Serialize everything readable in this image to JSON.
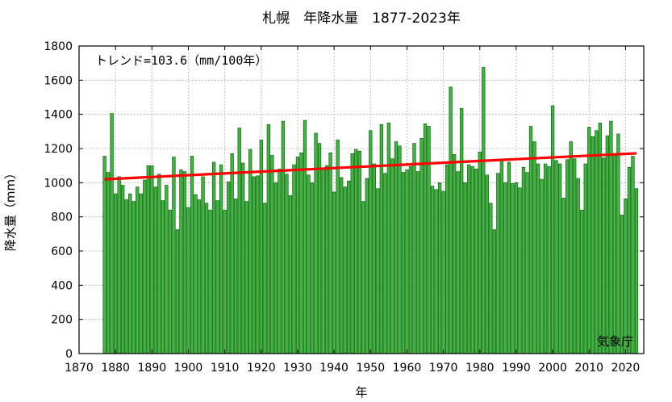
{
  "chart_data": {
    "type": "bar",
    "title": "札幌　年降水量　1877-2023年",
    "xlabel": "年",
    "ylabel": "降水量（mm）",
    "annotation": "トレンド=103.6（mm/100年）",
    "credit": "気象庁",
    "xlim": [
      1870,
      2025
    ],
    "ylim": [
      0,
      1800
    ],
    "xticks": [
      1870,
      1880,
      1890,
      1900,
      1910,
      1920,
      1930,
      1940,
      1950,
      1960,
      1970,
      1980,
      1990,
      2000,
      2010,
      2020
    ],
    "yticks": [
      0,
      200,
      400,
      600,
      800,
      1000,
      1200,
      1400,
      1600,
      1800
    ],
    "grid": true,
    "bar_color": "#3cb83c",
    "bar_edge_color": "#1a5a1a",
    "trend_color": "#ff0000",
    "trend_line": {
      "x": [
        1877,
        2023
      ],
      "y": [
        1020,
        1172
      ]
    },
    "x": [
      1877,
      1878,
      1879,
      1880,
      1881,
      1882,
      1883,
      1884,
      1885,
      1886,
      1887,
      1888,
      1889,
      1890,
      1891,
      1892,
      1893,
      1894,
      1895,
      1896,
      1897,
      1898,
      1899,
      1900,
      1901,
      1902,
      1903,
      1904,
      1905,
      1906,
      1907,
      1908,
      1909,
      1910,
      1911,
      1912,
      1913,
      1914,
      1915,
      1916,
      1917,
      1918,
      1919,
      1920,
      1921,
      1922,
      1923,
      1924,
      1925,
      1926,
      1927,
      1928,
      1929,
      1930,
      1931,
      1932,
      1933,
      1934,
      1935,
      1936,
      1937,
      1938,
      1939,
      1940,
      1941,
      1942,
      1943,
      1944,
      1945,
      1946,
      1947,
      1948,
      1949,
      1950,
      1951,
      1952,
      1953,
      1954,
      1955,
      1956,
      1957,
      1958,
      1959,
      1960,
      1961,
      1962,
      1963,
      1964,
      1965,
      1966,
      1967,
      1968,
      1969,
      1970,
      1971,
      1972,
      1973,
      1974,
      1975,
      1976,
      1977,
      1978,
      1979,
      1980,
      1981,
      1982,
      1983,
      1984,
      1985,
      1986,
      1987,
      1988,
      1989,
      1990,
      1991,
      1992,
      1993,
      1994,
      1995,
      1996,
      1997,
      1998,
      1999,
      2000,
      2001,
      2002,
      2003,
      2004,
      2005,
      2006,
      2007,
      2008,
      2009,
      2010,
      2011,
      2012,
      2013,
      2014,
      2015,
      2016,
      2017,
      2018,
      2019,
      2020,
      2021,
      2022,
      2023
    ],
    "values": [
      1155,
      1060,
      1405,
      935,
      1035,
      985,
      900,
      935,
      890,
      975,
      935,
      1015,
      1100,
      1100,
      975,
      1050,
      895,
      985,
      840,
      1150,
      725,
      1075,
      1065,
      855,
      1155,
      930,
      900,
      1035,
      880,
      840,
      1120,
      895,
      1105,
      840,
      1005,
      1170,
      905,
      1320,
      1115,
      890,
      1195,
      1035,
      1040,
      1250,
      880,
      1340,
      1160,
      1000,
      1080,
      1360,
      1050,
      925,
      1105,
      1150,
      1175,
      1365,
      1045,
      1000,
      1290,
      1230,
      1080,
      1100,
      1175,
      945,
      1250,
      1030,
      975,
      1010,
      1170,
      1195,
      1185,
      890,
      1025,
      1305,
      1110,
      965,
      1340,
      1055,
      1350,
      1140,
      1240,
      1215,
      1060,
      1075,
      1095,
      1230,
      1065,
      1260,
      1345,
      1330,
      980,
      960,
      1000,
      950,
      1105,
      1560,
      1165,
      1065,
      1435,
      1000,
      1105,
      1095,
      1080,
      1180,
      1675,
      1045,
      880,
      725,
      1055,
      1130,
      1000,
      1120,
      995,
      1000,
      970,
      1090,
      1060,
      1330,
      1240,
      1110,
      1020,
      1110,
      1095,
      1450,
      1130,
      1110,
      910,
      1135,
      1240,
      1140,
      1025,
      840,
      1110,
      1325,
      1270,
      1305,
      1350,
      1145,
      1275,
      1360,
      1170,
      1285,
      810,
      905,
      1090,
      1155,
      965
    ]
  }
}
